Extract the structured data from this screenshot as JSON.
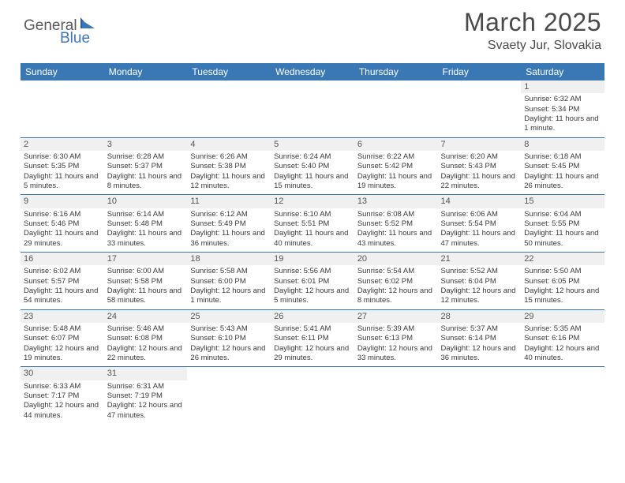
{
  "logo": {
    "part1": "General",
    "part2": "Blue"
  },
  "title": "March 2025",
  "location": "Svaety Jur, Slovakia",
  "colors": {
    "header_bg": "#3a78b5",
    "header_text": "#ffffff",
    "daynum_bg": "#f0f0f0",
    "border": "#3a78b5",
    "body_text": "#3a3a3a"
  },
  "day_headers": [
    "Sunday",
    "Monday",
    "Tuesday",
    "Wednesday",
    "Thursday",
    "Friday",
    "Saturday"
  ],
  "weeks": [
    [
      {
        "n": "",
        "sr": "",
        "ss": "",
        "dl": ""
      },
      {
        "n": "",
        "sr": "",
        "ss": "",
        "dl": ""
      },
      {
        "n": "",
        "sr": "",
        "ss": "",
        "dl": ""
      },
      {
        "n": "",
        "sr": "",
        "ss": "",
        "dl": ""
      },
      {
        "n": "",
        "sr": "",
        "ss": "",
        "dl": ""
      },
      {
        "n": "",
        "sr": "",
        "ss": "",
        "dl": ""
      },
      {
        "n": "1",
        "sr": "Sunrise: 6:32 AM",
        "ss": "Sunset: 5:34 PM",
        "dl": "Daylight: 11 hours and 1 minute."
      }
    ],
    [
      {
        "n": "2",
        "sr": "Sunrise: 6:30 AM",
        "ss": "Sunset: 5:35 PM",
        "dl": "Daylight: 11 hours and 5 minutes."
      },
      {
        "n": "3",
        "sr": "Sunrise: 6:28 AM",
        "ss": "Sunset: 5:37 PM",
        "dl": "Daylight: 11 hours and 8 minutes."
      },
      {
        "n": "4",
        "sr": "Sunrise: 6:26 AM",
        "ss": "Sunset: 5:38 PM",
        "dl": "Daylight: 11 hours and 12 minutes."
      },
      {
        "n": "5",
        "sr": "Sunrise: 6:24 AM",
        "ss": "Sunset: 5:40 PM",
        "dl": "Daylight: 11 hours and 15 minutes."
      },
      {
        "n": "6",
        "sr": "Sunrise: 6:22 AM",
        "ss": "Sunset: 5:42 PM",
        "dl": "Daylight: 11 hours and 19 minutes."
      },
      {
        "n": "7",
        "sr": "Sunrise: 6:20 AM",
        "ss": "Sunset: 5:43 PM",
        "dl": "Daylight: 11 hours and 22 minutes."
      },
      {
        "n": "8",
        "sr": "Sunrise: 6:18 AM",
        "ss": "Sunset: 5:45 PM",
        "dl": "Daylight: 11 hours and 26 minutes."
      }
    ],
    [
      {
        "n": "9",
        "sr": "Sunrise: 6:16 AM",
        "ss": "Sunset: 5:46 PM",
        "dl": "Daylight: 11 hours and 29 minutes."
      },
      {
        "n": "10",
        "sr": "Sunrise: 6:14 AM",
        "ss": "Sunset: 5:48 PM",
        "dl": "Daylight: 11 hours and 33 minutes."
      },
      {
        "n": "11",
        "sr": "Sunrise: 6:12 AM",
        "ss": "Sunset: 5:49 PM",
        "dl": "Daylight: 11 hours and 36 minutes."
      },
      {
        "n": "12",
        "sr": "Sunrise: 6:10 AM",
        "ss": "Sunset: 5:51 PM",
        "dl": "Daylight: 11 hours and 40 minutes."
      },
      {
        "n": "13",
        "sr": "Sunrise: 6:08 AM",
        "ss": "Sunset: 5:52 PM",
        "dl": "Daylight: 11 hours and 43 minutes."
      },
      {
        "n": "14",
        "sr": "Sunrise: 6:06 AM",
        "ss": "Sunset: 5:54 PM",
        "dl": "Daylight: 11 hours and 47 minutes."
      },
      {
        "n": "15",
        "sr": "Sunrise: 6:04 AM",
        "ss": "Sunset: 5:55 PM",
        "dl": "Daylight: 11 hours and 50 minutes."
      }
    ],
    [
      {
        "n": "16",
        "sr": "Sunrise: 6:02 AM",
        "ss": "Sunset: 5:57 PM",
        "dl": "Daylight: 11 hours and 54 minutes."
      },
      {
        "n": "17",
        "sr": "Sunrise: 6:00 AM",
        "ss": "Sunset: 5:58 PM",
        "dl": "Daylight: 11 hours and 58 minutes."
      },
      {
        "n": "18",
        "sr": "Sunrise: 5:58 AM",
        "ss": "Sunset: 6:00 PM",
        "dl": "Daylight: 12 hours and 1 minute."
      },
      {
        "n": "19",
        "sr": "Sunrise: 5:56 AM",
        "ss": "Sunset: 6:01 PM",
        "dl": "Daylight: 12 hours and 5 minutes."
      },
      {
        "n": "20",
        "sr": "Sunrise: 5:54 AM",
        "ss": "Sunset: 6:02 PM",
        "dl": "Daylight: 12 hours and 8 minutes."
      },
      {
        "n": "21",
        "sr": "Sunrise: 5:52 AM",
        "ss": "Sunset: 6:04 PM",
        "dl": "Daylight: 12 hours and 12 minutes."
      },
      {
        "n": "22",
        "sr": "Sunrise: 5:50 AM",
        "ss": "Sunset: 6:05 PM",
        "dl": "Daylight: 12 hours and 15 minutes."
      }
    ],
    [
      {
        "n": "23",
        "sr": "Sunrise: 5:48 AM",
        "ss": "Sunset: 6:07 PM",
        "dl": "Daylight: 12 hours and 19 minutes."
      },
      {
        "n": "24",
        "sr": "Sunrise: 5:46 AM",
        "ss": "Sunset: 6:08 PM",
        "dl": "Daylight: 12 hours and 22 minutes."
      },
      {
        "n": "25",
        "sr": "Sunrise: 5:43 AM",
        "ss": "Sunset: 6:10 PM",
        "dl": "Daylight: 12 hours and 26 minutes."
      },
      {
        "n": "26",
        "sr": "Sunrise: 5:41 AM",
        "ss": "Sunset: 6:11 PM",
        "dl": "Daylight: 12 hours and 29 minutes."
      },
      {
        "n": "27",
        "sr": "Sunrise: 5:39 AM",
        "ss": "Sunset: 6:13 PM",
        "dl": "Daylight: 12 hours and 33 minutes."
      },
      {
        "n": "28",
        "sr": "Sunrise: 5:37 AM",
        "ss": "Sunset: 6:14 PM",
        "dl": "Daylight: 12 hours and 36 minutes."
      },
      {
        "n": "29",
        "sr": "Sunrise: 5:35 AM",
        "ss": "Sunset: 6:16 PM",
        "dl": "Daylight: 12 hours and 40 minutes."
      }
    ],
    [
      {
        "n": "30",
        "sr": "Sunrise: 6:33 AM",
        "ss": "Sunset: 7:17 PM",
        "dl": "Daylight: 12 hours and 44 minutes."
      },
      {
        "n": "31",
        "sr": "Sunrise: 6:31 AM",
        "ss": "Sunset: 7:19 PM",
        "dl": "Daylight: 12 hours and 47 minutes."
      },
      {
        "n": "",
        "sr": "",
        "ss": "",
        "dl": ""
      },
      {
        "n": "",
        "sr": "",
        "ss": "",
        "dl": ""
      },
      {
        "n": "",
        "sr": "",
        "ss": "",
        "dl": ""
      },
      {
        "n": "",
        "sr": "",
        "ss": "",
        "dl": ""
      },
      {
        "n": "",
        "sr": "",
        "ss": "",
        "dl": ""
      }
    ]
  ]
}
